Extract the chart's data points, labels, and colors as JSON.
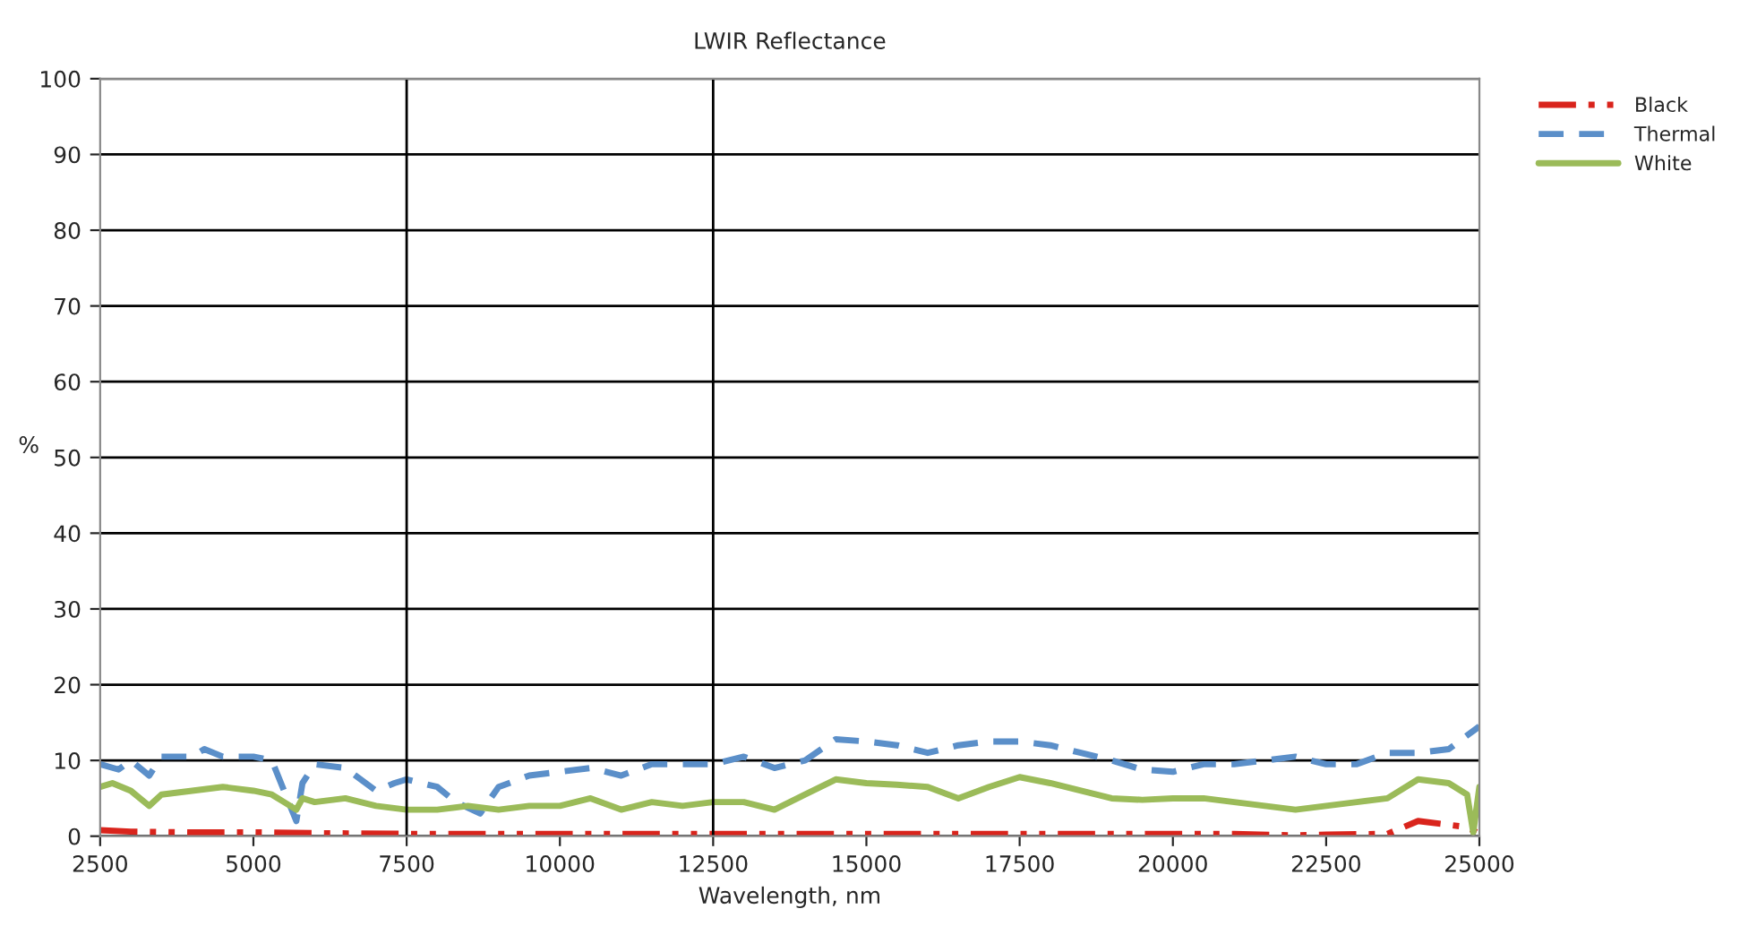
{
  "chart_data": {
    "type": "line",
    "title": "LWIR Reflectance",
    "xlabel": "Wavelength, nm",
    "ylabel": "%",
    "xlim": [
      2500,
      25000
    ],
    "xticks": [
      2500,
      5000,
      7500,
      10000,
      12500,
      15000,
      17500,
      20000,
      22500,
      25000
    ],
    "ylim": [
      0,
      100
    ],
    "yticks": [
      0,
      10,
      20,
      30,
      40,
      50,
      60,
      70,
      80,
      90,
      100
    ],
    "grid": "y",
    "legend": "top right",
    "ref_lines": [
      {
        "axis": "x",
        "value": 7500,
        "color": "#000000"
      },
      {
        "axis": "x",
        "value": 12500,
        "color": "#000000"
      }
    ],
    "series": [
      {
        "name": "Black",
        "color": "#d9241c",
        "line_style": "dashdot",
        "x": [
          2500,
          3000,
          4000,
          5000,
          6000,
          7500,
          10000,
          12500,
          15000,
          17500,
          20000,
          21000,
          22000,
          22500,
          23500,
          24000,
          24500,
          24800,
          25000
        ],
        "values": [
          0.8,
          0.6,
          0.5,
          0.5,
          0.4,
          0.3,
          0.3,
          0.3,
          0.3,
          0.3,
          0.3,
          0.3,
          0.1,
          0.2,
          0.3,
          2,
          1.5,
          1.2,
          0.3
        ]
      },
      {
        "name": "Thermal",
        "color": "#5b8fc9",
        "line_style": "dashed",
        "x": [
          2500,
          2800,
          3000,
          3300,
          3500,
          4000,
          4200,
          4500,
          5000,
          5300,
          5600,
          5700,
          5800,
          6000,
          6500,
          7000,
          7300,
          7500,
          8000,
          8300,
          8700,
          9000,
          9500,
          10000,
          10500,
          11000,
          11500,
          12000,
          12500,
          13000,
          13500,
          14000,
          14500,
          15000,
          15500,
          16000,
          16500,
          17000,
          17500,
          18000,
          18500,
          19000,
          19500,
          20000,
          20500,
          21000,
          21500,
          22000,
          22500,
          23000,
          23500,
          24000,
          24500,
          25000
        ],
        "values": [
          9.5,
          8.8,
          10,
          8,
          10.5,
          10.5,
          11.5,
          10.5,
          10.5,
          10,
          4,
          2,
          7,
          9.5,
          9,
          6,
          7,
          7.5,
          6.5,
          4.5,
          3,
          6.5,
          8,
          8.5,
          9,
          8,
          9.5,
          9.5,
          9.5,
          10.5,
          9,
          10,
          12.8,
          12.5,
          12,
          11,
          12,
          12.5,
          12.5,
          12,
          11,
          10,
          8.8,
          8.5,
          9.5,
          9.5,
          10,
          10.5,
          9.5,
          9.5,
          11,
          11,
          11.5,
          14.5
        ]
      },
      {
        "name": "White",
        "color": "#9bbb59",
        "line_style": "solid",
        "x": [
          2500,
          2700,
          3000,
          3300,
          3500,
          4000,
          4500,
          5000,
          5300,
          5500,
          5700,
          5800,
          6000,
          6500,
          7000,
          7500,
          8000,
          8500,
          9000,
          9500,
          10000,
          10500,
          11000,
          11500,
          12000,
          12500,
          13000,
          13500,
          14000,
          14500,
          15000,
          15500,
          16000,
          16500,
          17000,
          17500,
          18000,
          18500,
          19000,
          19500,
          20000,
          20500,
          21000,
          21500,
          22000,
          22500,
          23000,
          23500,
          24000,
          24500,
          24800,
          24900,
          25000
        ],
        "values": [
          6.5,
          7,
          6,
          4,
          5.5,
          6,
          6.5,
          6,
          5.5,
          4.5,
          3.5,
          5,
          4.5,
          5,
          4,
          3.5,
          3.5,
          4,
          3.5,
          4,
          4,
          5,
          3.5,
          4.5,
          4,
          4.5,
          4.5,
          3.5,
          5.5,
          7.5,
          7,
          6.8,
          6.5,
          5,
          6.5,
          7.8,
          7,
          6,
          5,
          4.8,
          5,
          5,
          4.5,
          4,
          3.5,
          4,
          4.5,
          5,
          7.5,
          7,
          5.5,
          0.5,
          6.5
        ]
      }
    ]
  }
}
